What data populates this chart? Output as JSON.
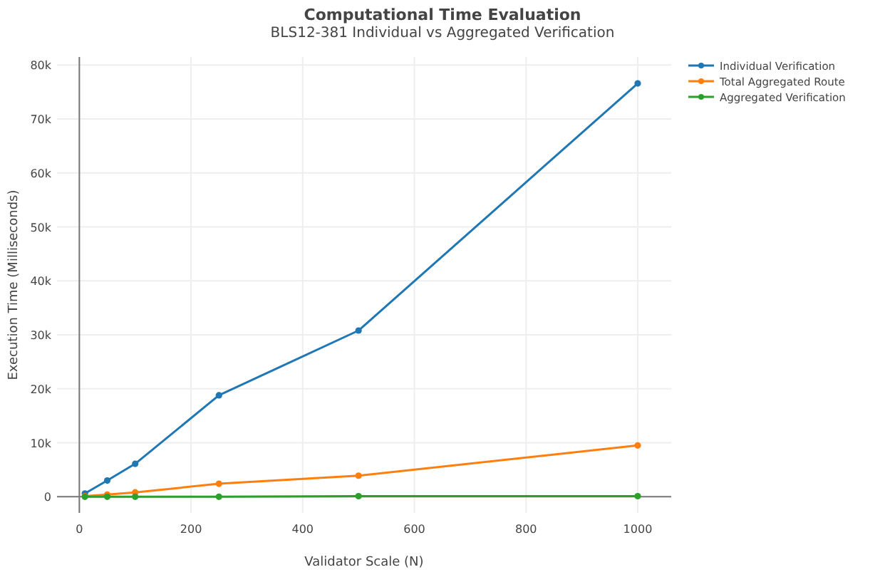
{
  "chart_data": {
    "type": "line",
    "title": "Computational Time Evaluation",
    "subtitle": "BLS12-381 Individual vs Aggregated Verification",
    "xlabel": "Validator Scale (N)",
    "ylabel": "Execution Time (Milliseconds)",
    "x": [
      10,
      50,
      100,
      250,
      500,
      1000
    ],
    "series": [
      {
        "name": "Individual Verification",
        "color": "#1f77b4",
        "values": [
          600,
          3000,
          6100,
          18800,
          30800,
          76600
        ]
      },
      {
        "name": "Total Aggregated Route",
        "color": "#ff7f0e",
        "values": [
          100,
          400,
          800,
          2400,
          3900,
          9500
        ]
      },
      {
        "name": "Aggregated Verification",
        "color": "#2ca02c",
        "values": [
          0,
          0,
          0,
          0,
          100,
          100
        ]
      }
    ],
    "xlim": [
      -40,
      1060
    ],
    "ylim": [
      -3000,
      81500
    ],
    "xticks": [
      0,
      200,
      400,
      600,
      800,
      1000
    ],
    "yticks": [
      0,
      {
        "value": 10000,
        "label": "10k"
      },
      {
        "value": 20000,
        "label": "20k"
      },
      {
        "value": 30000,
        "label": "30k"
      },
      {
        "value": 40000,
        "label": "40k"
      },
      {
        "value": 50000,
        "label": "50k"
      },
      {
        "value": 60000,
        "label": "60k"
      },
      {
        "value": 70000,
        "label": "70k"
      },
      {
        "value": 80000,
        "label": "80k"
      }
    ],
    "grid": true,
    "legend": "top right",
    "marker": "circle",
    "line_style": "solid"
  }
}
